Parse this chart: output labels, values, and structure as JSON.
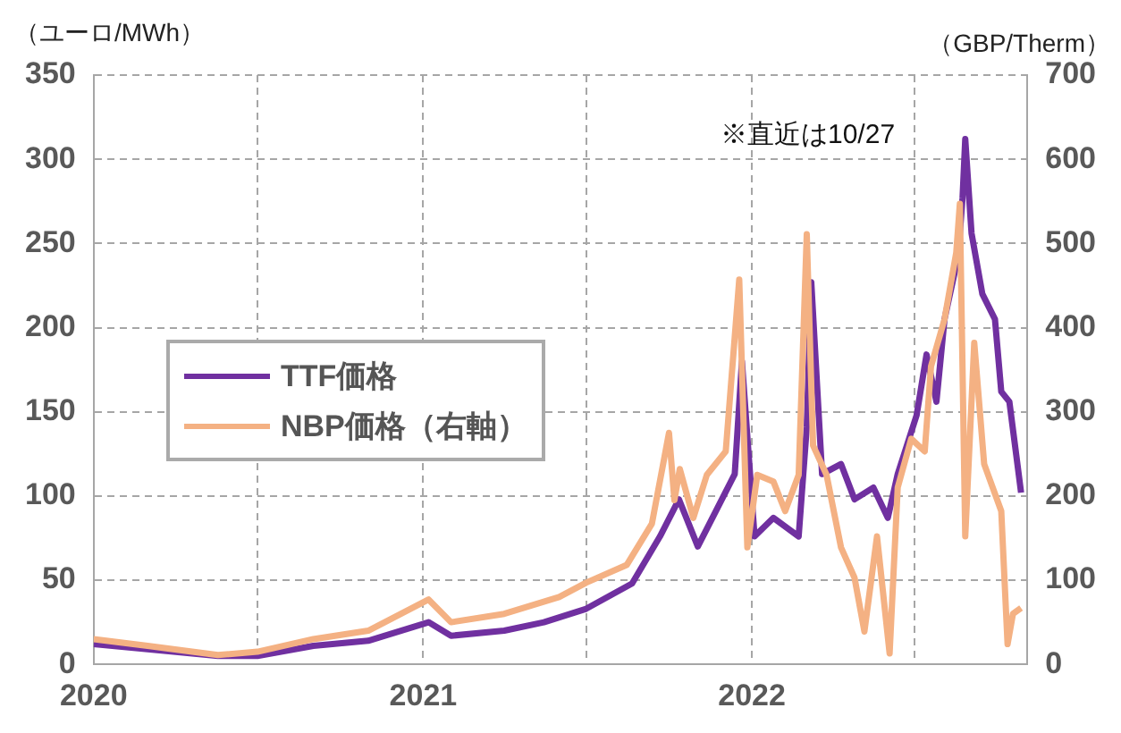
{
  "chart_data": {
    "type": "line",
    "ylabel": "（ユーロ/MWh）",
    "y2label": "（GBP/Therm）",
    "annotations": [
      "※直近は10/27"
    ],
    "xlim": [
      "2020-01-01",
      "2022-11-03"
    ],
    "xticks": [
      {
        "value": "2020-01-01",
        "label": "2020"
      },
      {
        "value": "2020-07-01",
        "label": null
      },
      {
        "value": "2021-01-01",
        "label": "2021"
      },
      {
        "value": "2021-07-01",
        "label": null
      },
      {
        "value": "2022-01-01",
        "label": "2022"
      },
      {
        "value": "2022-07-01",
        "label": null
      }
    ],
    "ylim": [
      0,
      350
    ],
    "yticks": [
      0,
      50,
      100,
      150,
      200,
      250,
      300,
      350
    ],
    "y2lim": [
      0,
      700
    ],
    "y2ticks": [
      0,
      100,
      200,
      300,
      400,
      500,
      600,
      700
    ],
    "grid": true,
    "legend": "center left",
    "marker": "none",
    "line_style": "solid",
    "series": [
      {
        "name": "TTF価格",
        "color": "#7030a0",
        "x": [
          "2020-01-01",
          "2020-03-01",
          "2020-05-18",
          "2020-07-01",
          "2020-09-01",
          "2020-11-01",
          "2021-01-07",
          "2021-02-01",
          "2021-04-01",
          "2021-05-15",
          "2021-07-01",
          "2021-08-21",
          "2021-09-21",
          "2021-10-12",
          "2021-11-02",
          "2021-11-22",
          "2021-12-13",
          "2021-12-21",
          "2022-01-04",
          "2022-01-25",
          "2022-02-22",
          "2022-03-03",
          "2022-03-08",
          "2022-03-20",
          "2022-04-10",
          "2022-04-25",
          "2022-05-16",
          "2022-06-01",
          "2022-06-12",
          "2022-07-03",
          "2022-07-14",
          "2022-07-25",
          "2022-08-03",
          "2022-08-18",
          "2022-08-23",
          "2022-08-26",
          "2022-09-02",
          "2022-09-14",
          "2022-09-28",
          "2022-10-05",
          "2022-10-14",
          "2022-10-21",
          "2022-10-27"
        ],
        "values": [
          12,
          9,
          5,
          5,
          11,
          14,
          25,
          17,
          20,
          25,
          33,
          48,
          76,
          98,
          70,
          91,
          113,
          180,
          76,
          87,
          76,
          141,
          227,
          113,
          119,
          98,
          105,
          87,
          113,
          148,
          184,
          156,
          205,
          242,
          277,
          312,
          256,
          220,
          205,
          162,
          156,
          127,
          102
        ]
      },
      {
        "name": "NBP価格（右軸）",
        "color": "#f4b183",
        "axis": "y2",
        "x": [
          "2020-01-01",
          "2020-03-01",
          "2020-05-18",
          "2020-07-01",
          "2020-09-01",
          "2020-11-01",
          "2021-01-07",
          "2021-02-01",
          "2021-04-01",
          "2021-06-01",
          "2021-07-01",
          "2021-08-15",
          "2021-09-12",
          "2021-10-01",
          "2021-10-07",
          "2021-10-13",
          "2021-10-28",
          "2021-11-12",
          "2021-12-03",
          "2021-12-18",
          "2021-12-27",
          "2022-01-07",
          "2022-01-25",
          "2022-02-07",
          "2022-02-22",
          "2022-03-03",
          "2022-03-10",
          "2022-03-25",
          "2022-04-10",
          "2022-04-25",
          "2022-05-06",
          "2022-05-20",
          "2022-06-03",
          "2022-06-12",
          "2022-06-27",
          "2022-07-12",
          "2022-07-19",
          "2022-08-03",
          "2022-08-16",
          "2022-08-20",
          "2022-08-26",
          "2022-09-05",
          "2022-09-16",
          "2022-10-05",
          "2022-10-12",
          "2022-10-18",
          "2022-10-27"
        ],
        "values": [
          30,
          22,
          11,
          15,
          30,
          40,
          77,
          50,
          60,
          80,
          97,
          118,
          167,
          275,
          195,
          232,
          174,
          225,
          253,
          457,
          139,
          225,
          217,
          182,
          225,
          511,
          260,
          225,
          139,
          103,
          39,
          152,
          13,
          210,
          268,
          253,
          354,
          410,
          489,
          547,
          152,
          382,
          238,
          182,
          24,
          60,
          67
        ]
      }
    ]
  }
}
